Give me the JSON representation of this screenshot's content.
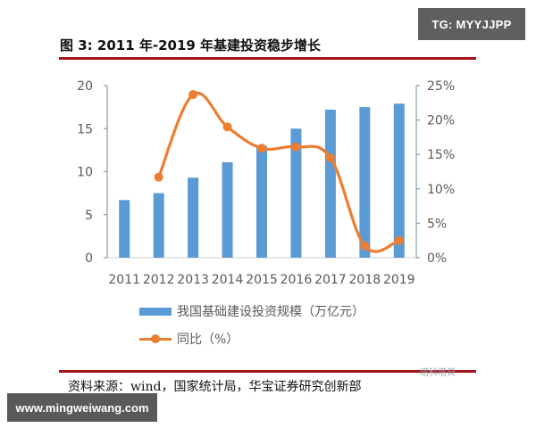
{
  "watermark": {
    "tg_label": "TG: MYYJJPP",
    "url_label": "www.mingweiwang.com",
    "brand_mark": "塔科塔貝"
  },
  "figure": {
    "title": "图  3: 2011 年-2019 年基建投资稳步增长",
    "source": "资料来源：wind，国家统计局，华宝证券研究创新部"
  },
  "colors": {
    "bar": "#5b9bd5",
    "line": "#ed7d31",
    "rule": "#a3121c",
    "axis": "#8ea3b0",
    "text": "#595959"
  },
  "legend": {
    "bar_label": "我国基础建设投资规模（万亿元）",
    "line_label": "同比（%）"
  },
  "chart_data": {
    "type": "bar+line",
    "title": "2011 年-2019 年基建投资稳步增长",
    "categories": [
      "2011",
      "2012",
      "2013",
      "2014",
      "2015",
      "2016",
      "2017",
      "2018",
      "2019"
    ],
    "series": [
      {
        "name": "我国基础建设投资规模（万亿元）",
        "type": "bar",
        "axis": "left",
        "values": [
          6.7,
          7.5,
          9.3,
          11.1,
          13.0,
          15.0,
          17.2,
          17.5,
          17.9
        ]
      },
      {
        "name": "同比（%）",
        "type": "line",
        "axis": "right",
        "values": [
          null,
          11.7,
          23.7,
          19.0,
          15.9,
          16.1,
          14.5,
          1.7,
          2.5
        ]
      }
    ],
    "left_axis": {
      "ylim": [
        0,
        20
      ],
      "ticks": [
        "0",
        "5",
        "10",
        "15",
        "20"
      ]
    },
    "right_axis": {
      "ylim": [
        0,
        25
      ],
      "ticks": [
        "0%",
        "5%",
        "10%",
        "15%",
        "20%",
        "25%"
      ]
    },
    "xlabel": "",
    "ylabel": "",
    "grid": false,
    "legend_position": "bottom"
  }
}
